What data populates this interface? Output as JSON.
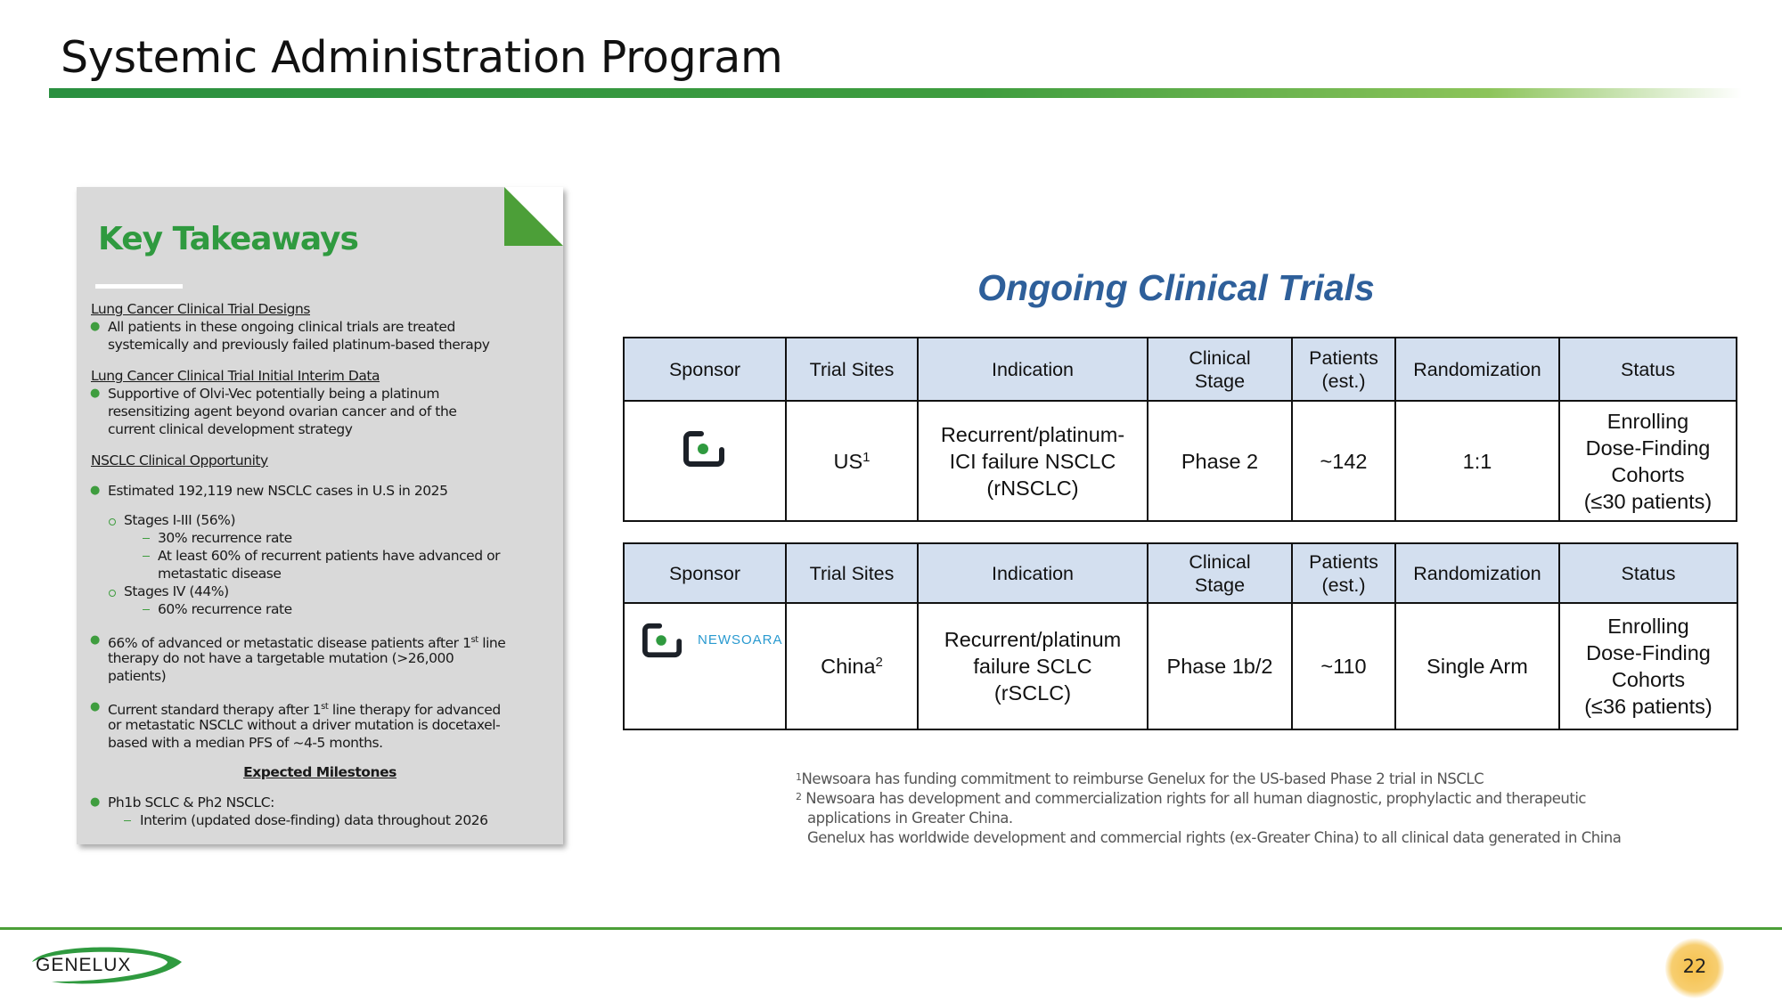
{
  "title": "Systemic Administration Program",
  "takeaways": {
    "heading": "Key Takeaways",
    "sections": [
      {
        "label": "Lung Cancer Clinical Trial Designs"
      },
      {
        "label": "Lung Cancer Clinical Trial Initial Interim Data"
      },
      {
        "label": "NSCLC Clinical Opportunity"
      }
    ],
    "b1": [
      "All patients in these ongoing clinical trials are treated",
      "systemically and previously failed platinum-based therapy"
    ],
    "b2": [
      "Supportive of Olvi-Vec potentially being a platinum",
      "resensitizing agent beyond ovarian cancer and of the",
      "current clinical development strategy"
    ],
    "b3": "Estimated 192,119 new NSCLC cases in U.S in 2025",
    "b3a": "Stages I-III (56%)",
    "b3a1": "30% recurrence rate",
    "b3a2": [
      "At least 60% of recurrent patients have advanced or",
      "metastatic disease"
    ],
    "b3b": "Stages IV (44%)",
    "b3b1": "60% recurrence rate",
    "b4": {
      "pre": "66% of advanced or metastatic disease patients after 1",
      "sup": "st",
      "post": " line",
      "l2": "therapy do not have a targetable mutation (>26,000",
      "l3": "patients)"
    },
    "b5": {
      "pre": "Current standard therapy after 1",
      "sup": "st",
      "post": " line therapy for advanced",
      "l2": "or metastatic NSCLC without a driver mutation is docetaxel-",
      "l3": "based with a median PFS of ~4-5 months."
    },
    "milestones_heading": "Expected Milestones",
    "m1": "Ph1b SCLC & Ph2 NSCLC:",
    "m1a": "Interim (updated dose-finding) data throughout 2026"
  },
  "trials": {
    "heading": "Ongoing Clinical Trials",
    "headers": [
      "Sponsor",
      "Trial Sites",
      "Indication",
      "Clinical Stage",
      "Patients (est.)",
      "Randomization",
      "Status"
    ],
    "rows": [
      {
        "sponsor_logo": "genelux-g-icon",
        "sites": "US",
        "sites_note": "1",
        "indication": [
          "Recurrent/platinum-",
          "ICI failure NSCLC",
          "(rNSCLC)"
        ],
        "stage": "Phase 2",
        "patients": "~142",
        "randomization": "1:1",
        "status": [
          "Enrolling",
          "Dose-Finding",
          "Cohorts",
          "(≤30 patients)"
        ]
      },
      {
        "sponsor_logo": "newsoara-logo",
        "sponsor_name": "NEWSOARA",
        "sites": "China",
        "sites_note": "2",
        "indication": [
          "Recurrent/platinum",
          "failure SCLC",
          "(rSCLC)"
        ],
        "stage": "Phase 1b/2",
        "patients": "~110",
        "randomization": "Single Arm",
        "status": [
          "Enrolling",
          "Dose-Finding",
          "Cohorts",
          "(≤36 patients)"
        ]
      }
    ]
  },
  "footnotes": [
    {
      "mark": "1",
      "text": "Newsoara has funding commitment to reimburse Genelux for the US-based Phase 2 trial in NSCLC"
    },
    {
      "mark": "2",
      "text": "Newsoara has development and commercialization rights for all human diagnostic, prophylactic and therapeutic"
    },
    {
      "mark": "",
      "text": "applications in Greater China."
    },
    {
      "mark": "",
      "text": "Genelux has worldwide development and commercial rights (ex-Greater China) to all clinical data generated in China"
    }
  ],
  "footer": {
    "logo_text": "GENELUX",
    "page_number": "22"
  },
  "colors": {
    "brand_green": "#3f9d3f",
    "heading_blue": "#2e5f9a",
    "table_header": "#d3dfef"
  }
}
